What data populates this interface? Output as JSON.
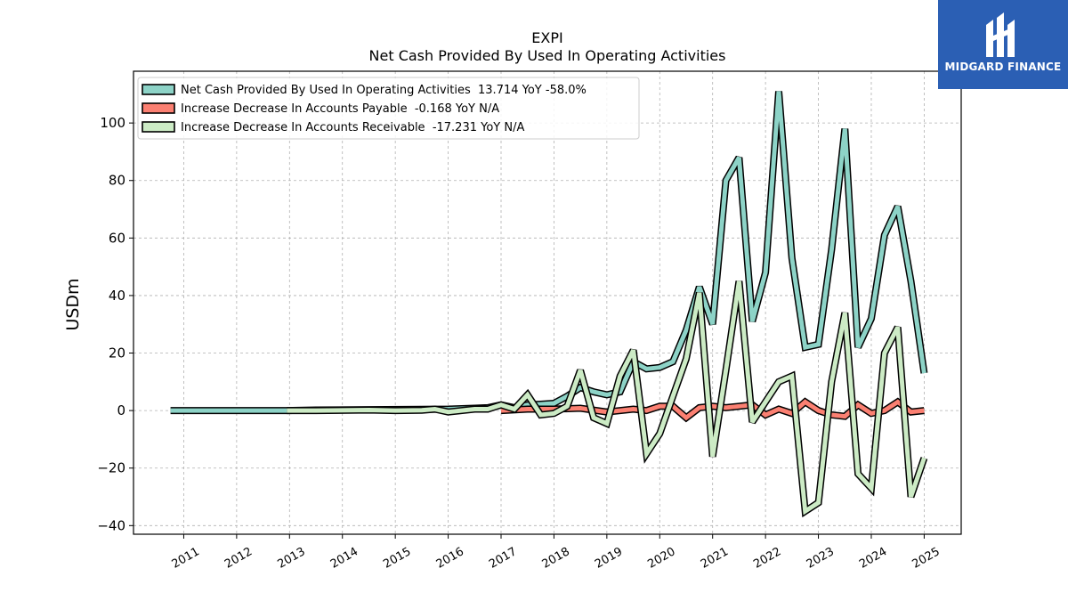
{
  "brand": {
    "name": "MIDGARD FINANCE",
    "bg_color": "#2b5fb4"
  },
  "chart_data": {
    "type": "line",
    "title": "EXPI",
    "subtitle": "Net Cash Provided By Used In Operating Activities",
    "ylabel": "USDm",
    "xlabel": "",
    "ylim": [
      -43,
      118
    ],
    "xlim": [
      2010.05,
      2025.7
    ],
    "yticks": [
      -40,
      -20,
      0,
      20,
      40,
      60,
      80,
      100
    ],
    "xticks": [
      "2011",
      "2012",
      "2013",
      "2014",
      "2015",
      "2016",
      "2017",
      "2018",
      "2019",
      "2020",
      "2021",
      "2022",
      "2023",
      "2024",
      "2025"
    ],
    "grid": true,
    "legend_position": "top-left",
    "series": [
      {
        "name": "Net Cash Provided By Used In Operating Activities",
        "legend": "Net Cash Provided By Used In Operating Activities  13.714 YoY -58.0%",
        "color": "#8dd3c7",
        "points": [
          [
            2010.75,
            0
          ],
          [
            2012.95,
            0
          ],
          [
            2013.5,
            0.2
          ],
          [
            2014.5,
            0.3
          ],
          [
            2015.5,
            0.4
          ],
          [
            2016.0,
            0.5
          ],
          [
            2016.5,
            0.8
          ],
          [
            2016.75,
            1.0
          ],
          [
            2017.0,
            2.0
          ],
          [
            2017.25,
            1.0
          ],
          [
            2017.5,
            2.0
          ],
          [
            2017.75,
            2.2
          ],
          [
            2018.0,
            2.5
          ],
          [
            2018.25,
            5.0
          ],
          [
            2018.5,
            8.0
          ],
          [
            2018.75,
            6.5
          ],
          [
            2019.0,
            5.5
          ],
          [
            2019.25,
            6.5
          ],
          [
            2019.5,
            17.0
          ],
          [
            2019.75,
            14.5
          ],
          [
            2020.0,
            15.0
          ],
          [
            2020.25,
            17.0
          ],
          [
            2020.5,
            28.0
          ],
          [
            2020.75,
            43.0
          ],
          [
            2021.0,
            30.0
          ],
          [
            2021.25,
            80.0
          ],
          [
            2021.5,
            88.0
          ],
          [
            2021.75,
            31.0
          ],
          [
            2022.0,
            48.0
          ],
          [
            2022.25,
            111.0
          ],
          [
            2022.5,
            53.0
          ],
          [
            2022.75,
            22.0
          ],
          [
            2023.0,
            23.0
          ],
          [
            2023.25,
            56.0
          ],
          [
            2023.5,
            98.0
          ],
          [
            2023.75,
            22.0
          ],
          [
            2024.0,
            32.0
          ],
          [
            2024.25,
            61.0
          ],
          [
            2024.5,
            71.0
          ],
          [
            2024.75,
            45.0
          ],
          [
            2025.0,
            13.0
          ]
        ]
      },
      {
        "name": "Increase Decrease In Accounts Payable",
        "legend": "Increase Decrease In Accounts Payable  -0.168 YoY N/A",
        "color": "#fb8072",
        "points": [
          [
            2017.0,
            0
          ],
          [
            2017.5,
            0.5
          ],
          [
            2018.0,
            0.5
          ],
          [
            2018.5,
            0.8
          ],
          [
            2019.0,
            -0.5
          ],
          [
            2019.5,
            0.5
          ],
          [
            2019.75,
            0
          ],
          [
            2020.0,
            1.5
          ],
          [
            2020.25,
            1.5
          ],
          [
            2020.5,
            -2.5
          ],
          [
            2020.75,
            1.0
          ],
          [
            2021.0,
            1.5
          ],
          [
            2021.25,
            1.0
          ],
          [
            2021.5,
            1.5
          ],
          [
            2021.75,
            2.0
          ],
          [
            2022.0,
            -1.5
          ],
          [
            2022.25,
            0.5
          ],
          [
            2022.5,
            -1.0
          ],
          [
            2022.75,
            3.0
          ],
          [
            2023.0,
            0
          ],
          [
            2023.25,
            -1.5
          ],
          [
            2023.5,
            -2.0
          ],
          [
            2023.75,
            2.0
          ],
          [
            2024.0,
            -1.0
          ],
          [
            2024.25,
            0
          ],
          [
            2024.5,
            3.0
          ],
          [
            2024.75,
            -0.5
          ],
          [
            2025.0,
            0
          ]
        ]
      },
      {
        "name": "Increase Decrease In Accounts Receivable",
        "legend": "Increase Decrease In Accounts Receivable  -17.231 YoY N/A",
        "color": "#ccebc5",
        "points": [
          [
            2012.95,
            0
          ],
          [
            2013.5,
            0
          ],
          [
            2014.5,
            0.2
          ],
          [
            2015.0,
            0
          ],
          [
            2015.5,
            0.1
          ],
          [
            2015.75,
            0.5
          ],
          [
            2016.0,
            -0.5
          ],
          [
            2016.5,
            0.5
          ],
          [
            2016.75,
            0.5
          ],
          [
            2017.0,
            2.0
          ],
          [
            2017.25,
            0.5
          ],
          [
            2017.5,
            5.5
          ],
          [
            2017.75,
            -1.5
          ],
          [
            2018.0,
            -1.0
          ],
          [
            2018.25,
            1.5
          ],
          [
            2018.5,
            14.0
          ],
          [
            2018.75,
            -2.5
          ],
          [
            2019.0,
            -4.5
          ],
          [
            2019.25,
            12.0
          ],
          [
            2019.5,
            21.0
          ],
          [
            2019.75,
            -15.0
          ],
          [
            2020.0,
            -8.0
          ],
          [
            2020.25,
            5.0
          ],
          [
            2020.5,
            18.0
          ],
          [
            2020.75,
            41.0
          ],
          [
            2021.0,
            -16.0
          ],
          [
            2021.25,
            14.0
          ],
          [
            2021.5,
            45.0
          ],
          [
            2021.75,
            -4.0
          ],
          [
            2022.0,
            3.0
          ],
          [
            2022.25,
            10.0
          ],
          [
            2022.5,
            12.0
          ],
          [
            2022.75,
            -35.0
          ],
          [
            2023.0,
            -32.0
          ],
          [
            2023.25,
            10.0
          ],
          [
            2023.5,
            34.0
          ],
          [
            2023.75,
            -22.0
          ],
          [
            2024.0,
            -27.0
          ],
          [
            2024.25,
            20.0
          ],
          [
            2024.5,
            29.0
          ],
          [
            2024.75,
            -30.0
          ],
          [
            2025.0,
            -16.5
          ]
        ]
      }
    ]
  }
}
